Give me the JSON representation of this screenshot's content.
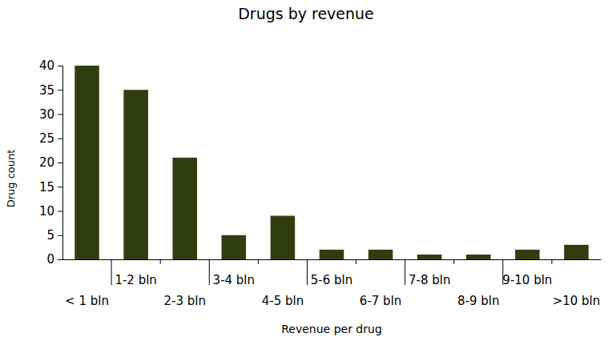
{
  "chart_data": {
    "type": "bar",
    "title": "Drugs by revenue",
    "x_label": "Revenue per drug",
    "y_label": "Drug count",
    "categories": [
      "< 1 bln",
      "1-2 bln",
      "2-3 bln",
      "3-4 bln",
      "4-5 bln",
      "5-6 bln",
      "6-7 bln",
      "7-8 bln",
      "8-9 bln",
      "9-10 bln",
      ">10 bln"
    ],
    "values": [
      40,
      35,
      21,
      5,
      9,
      2,
      2,
      1,
      1,
      2,
      3
    ],
    "color": "#323d0f",
    "ylim": [
      0,
      40
    ],
    "yticks": [
      0,
      5,
      10,
      15,
      20,
      25,
      30,
      35,
      40
    ],
    "grid": false
  }
}
